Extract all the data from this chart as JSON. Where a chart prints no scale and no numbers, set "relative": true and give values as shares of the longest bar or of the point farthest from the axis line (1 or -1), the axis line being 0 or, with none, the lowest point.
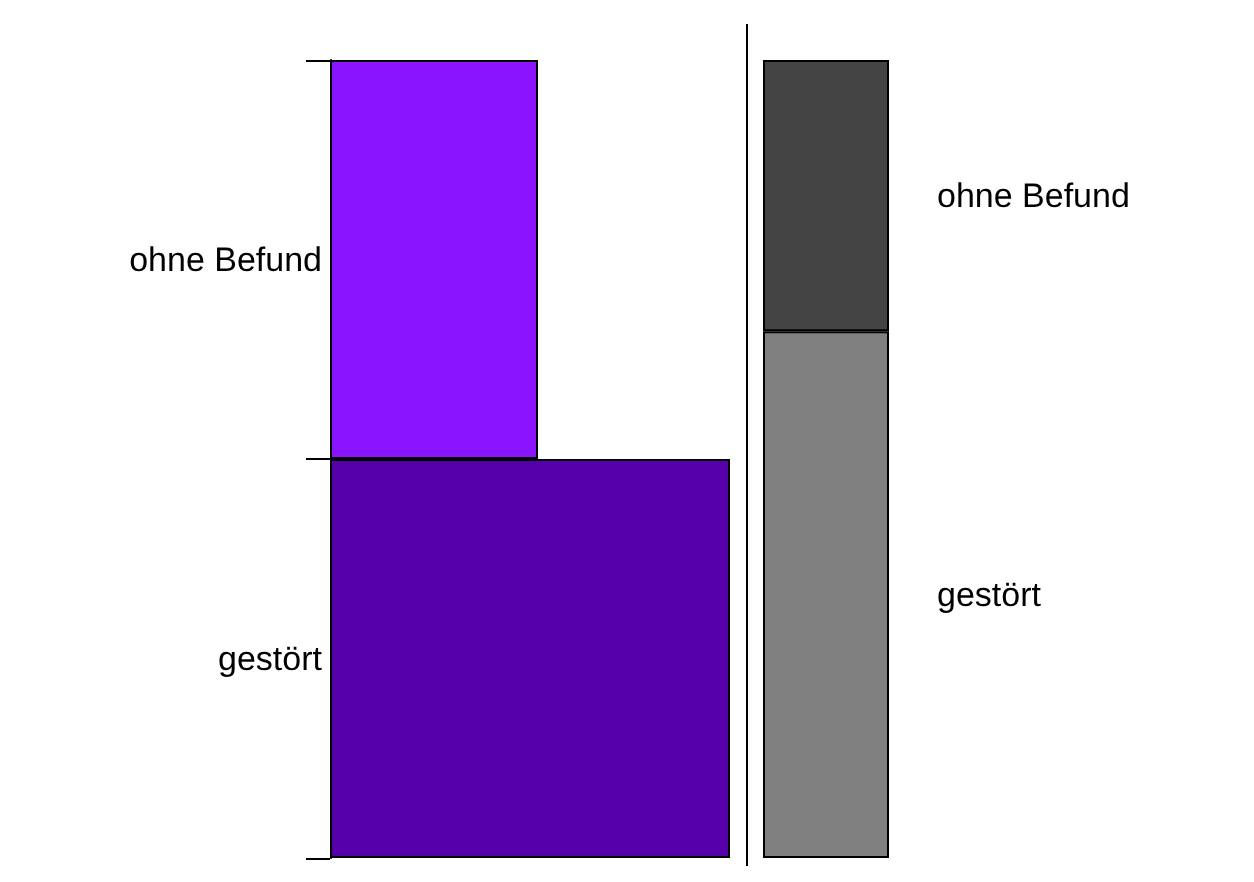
{
  "chart_data": [
    {
      "type": "bar",
      "orientation": "horizontal",
      "relative": true,
      "categories": [
        "ohne Befund",
        "gestört"
      ],
      "values": [
        0.52,
        1
      ],
      "colors": [
        "#8b14ff",
        "#5500aa"
      ]
    },
    {
      "type": "bar",
      "stacked": true,
      "relative": true,
      "categories": [
        null
      ],
      "series": [
        {
          "name": "gestört",
          "color": "#808080",
          "values": [
            0.66
          ]
        },
        {
          "name": "ohne Befund",
          "color": "#444444",
          "values": [
            0.34
          ]
        }
      ]
    }
  ]
}
